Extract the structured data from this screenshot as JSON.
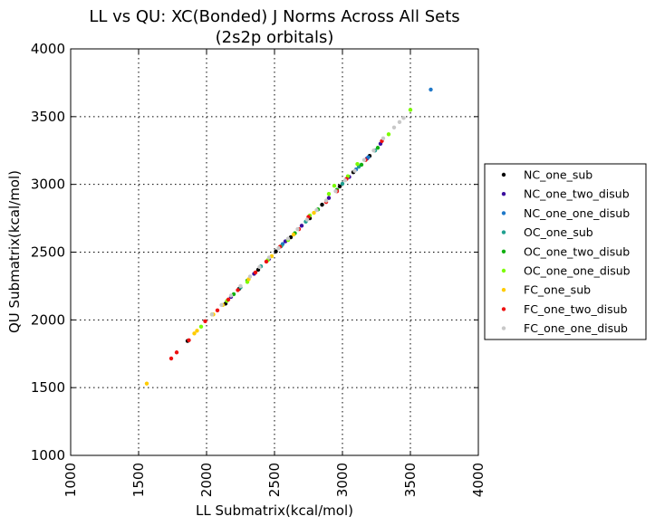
{
  "chart_data": {
    "type": "scatter",
    "title": "LL vs QU: XC(Bonded) J Norms Across All Sets",
    "subtitle": "(2s2p orbitals)",
    "xlabel": "LL Submatrix(kcal/mol)",
    "ylabel": "QU Submatrix(kcal/mol)",
    "xlim": [
      1000,
      4000
    ],
    "ylim": [
      1000,
      4000
    ],
    "xticks": [
      "1000",
      "1500",
      "2000",
      "2500",
      "3000",
      "3500",
      "4000"
    ],
    "yticks": [
      "1000",
      "1500",
      "2000",
      "2500",
      "3000",
      "3500",
      "4000"
    ],
    "grid": true,
    "legend_position": "right, outside plot",
    "series": [
      {
        "name": "NC_one_sub",
        "color": "#000000",
        "points": [
          [
            1860,
            1845
          ],
          [
            2140,
            2120
          ],
          [
            2240,
            2230
          ],
          [
            2380,
            2370
          ],
          [
            2510,
            2505
          ],
          [
            2620,
            2610
          ],
          [
            2760,
            2750
          ],
          [
            2850,
            2850
          ],
          [
            2980,
            2985
          ],
          [
            3080,
            3090
          ],
          [
            3200,
            3210
          ]
        ]
      },
      {
        "name": "NC_one_two_disub",
        "color": "#3b0f9e",
        "points": [
          [
            2180,
            2170
          ],
          [
            2350,
            2340
          ],
          [
            2460,
            2450
          ],
          [
            2580,
            2580
          ],
          [
            2700,
            2695
          ],
          [
            2900,
            2900
          ],
          [
            3050,
            3055
          ],
          [
            3180,
            3190
          ],
          [
            3280,
            3300
          ]
        ]
      },
      {
        "name": "NC_one_one_disub",
        "color": "#1f78c8",
        "points": [
          [
            3650,
            3700
          ],
          [
            3190,
            3200
          ],
          [
            3100,
            3110
          ],
          [
            2560,
            2560
          ]
        ]
      },
      {
        "name": "OC_one_sub",
        "color": "#20a090",
        "points": [
          [
            2250,
            2240
          ],
          [
            2400,
            2395
          ],
          [
            2550,
            2545
          ],
          [
            2730,
            2725
          ],
          [
            3000,
            3005
          ],
          [
            3120,
            3130
          ],
          [
            3240,
            3250
          ]
        ]
      },
      {
        "name": "OC_one_two_disub",
        "color": "#10b010",
        "points": [
          [
            2200,
            2190
          ],
          [
            2300,
            2290
          ],
          [
            2650,
            2640
          ],
          [
            2820,
            2815
          ],
          [
            2960,
            2960
          ],
          [
            3140,
            3145
          ],
          [
            3260,
            3270
          ]
        ]
      },
      {
        "name": "OC_one_one_disub",
        "color": "#7cfc00",
        "points": [
          [
            3500,
            3550
          ],
          [
            3340,
            3370
          ],
          [
            3110,
            3150
          ],
          [
            2940,
            2990
          ],
          [
            2760,
            2770
          ],
          [
            2600,
            2590
          ],
          [
            2450,
            2440
          ],
          [
            2300,
            2280
          ],
          [
            2150,
            2140
          ],
          [
            2040,
            2040
          ],
          [
            1960,
            1950
          ],
          [
            2900,
            2930
          ],
          [
            3040,
            3060
          ]
        ]
      },
      {
        "name": "FC_one_sub",
        "color": "#ffcc00",
        "points": [
          [
            1560,
            1530
          ],
          [
            1910,
            1900
          ],
          [
            1930,
            1920
          ],
          [
            2050,
            2040
          ],
          [
            2120,
            2110
          ],
          [
            2310,
            2300
          ],
          [
            2480,
            2470
          ],
          [
            2640,
            2630
          ],
          [
            2790,
            2790
          ]
        ]
      },
      {
        "name": "FC_one_two_disub",
        "color": "#ee1111",
        "points": [
          [
            1740,
            1715
          ],
          [
            1780,
            1760
          ],
          [
            1870,
            1850
          ],
          [
            1990,
            1990
          ],
          [
            2080,
            2070
          ],
          [
            2160,
            2150
          ],
          [
            2230,
            2220
          ],
          [
            2360,
            2350
          ],
          [
            2440,
            2430
          ],
          [
            2540,
            2540
          ],
          [
            2680,
            2670
          ],
          [
            2750,
            2760
          ],
          [
            2880,
            2870
          ],
          [
            2960,
            2950
          ],
          [
            3030,
            3040
          ],
          [
            3170,
            3180
          ],
          [
            3290,
            3320
          ]
        ]
      },
      {
        "name": "FC_one_one_disub",
        "color": "#c8c8c8",
        "points": [
          [
            3420,
            3460
          ],
          [
            3450,
            3490
          ],
          [
            3380,
            3420
          ],
          [
            3300,
            3340
          ],
          [
            3230,
            3250
          ],
          [
            3160,
            3180
          ],
          [
            3090,
            3100
          ],
          [
            3020,
            3030
          ],
          [
            2950,
            2950
          ],
          [
            2880,
            2880
          ],
          [
            2810,
            2810
          ],
          [
            2740,
            2740
          ],
          [
            2670,
            2670
          ],
          [
            2600,
            2600
          ],
          [
            2530,
            2530
          ],
          [
            2460,
            2460
          ],
          [
            2390,
            2390
          ],
          [
            2320,
            2320
          ],
          [
            2250,
            2250
          ],
          [
            2180,
            2180
          ],
          [
            2110,
            2110
          ],
          [
            2040,
            2040
          ]
        ]
      }
    ]
  }
}
